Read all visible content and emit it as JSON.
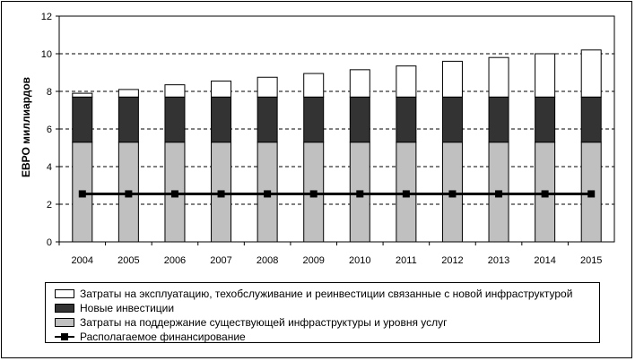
{
  "chart_data": {
    "type": "bar",
    "stacked": true,
    "title": "",
    "xlabel": "",
    "ylabel": "ЕВРО миллиардов",
    "ylim": [
      0,
      12
    ],
    "yticks": [
      "0",
      "2",
      "4",
      "6",
      "8",
      "10",
      "12"
    ],
    "grid": true,
    "legend_position": "bottom",
    "categories": [
      "2004",
      "2005",
      "2006",
      "2007",
      "2008",
      "2009",
      "2010",
      "2011",
      "2012",
      "2013",
      "2014",
      "2015"
    ],
    "series": [
      {
        "name": "Затраты на поддержание существующей инфраструктуры и уровня услуг",
        "kind": "bar",
        "color": "#c0c0c0",
        "values": [
          5.3,
          5.3,
          5.3,
          5.3,
          5.3,
          5.3,
          5.3,
          5.3,
          5.3,
          5.3,
          5.3,
          5.3
        ]
      },
      {
        "name": "Новые инвестиции",
        "kind": "bar",
        "color": "#333333",
        "values": [
          2.4,
          2.4,
          2.4,
          2.4,
          2.4,
          2.4,
          2.4,
          2.4,
          2.4,
          2.4,
          2.4,
          2.4
        ]
      },
      {
        "name": "Затраты на эксплуатацию, техобслуживание и реинвестиции связанные с новой инфраструктурой",
        "kind": "bar",
        "color": "#ffffff",
        "values": [
          0.2,
          0.4,
          0.65,
          0.85,
          1.05,
          1.25,
          1.45,
          1.65,
          1.9,
          2.1,
          2.3,
          2.5
        ]
      },
      {
        "name": "Располагаемое финансирование",
        "kind": "line",
        "color": "#000000",
        "values": [
          2.55,
          2.55,
          2.55,
          2.55,
          2.55,
          2.55,
          2.55,
          2.55,
          2.55,
          2.55,
          2.55,
          2.55
        ]
      }
    ]
  }
}
